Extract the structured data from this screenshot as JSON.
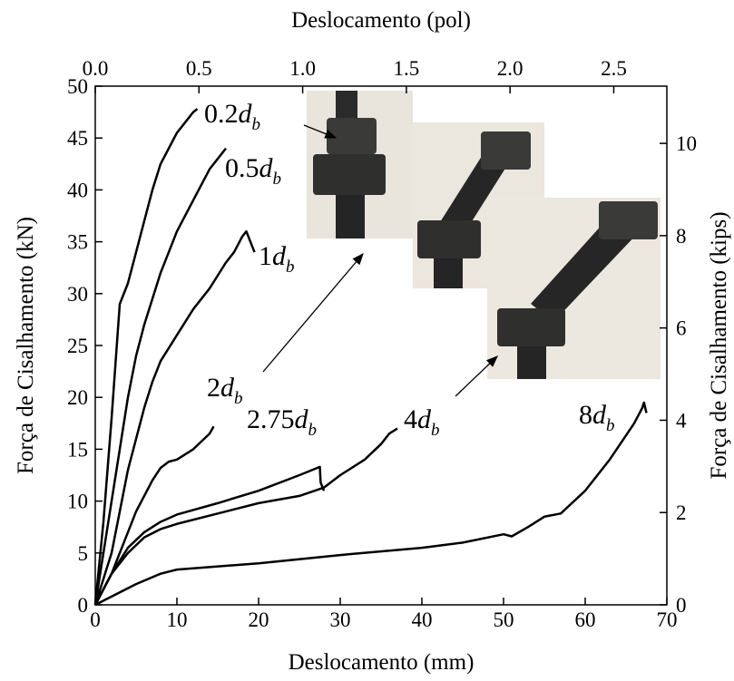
{
  "chart_data": {
    "type": "line",
    "xlabel": "Deslocamento (mm)",
    "ylabel": "Força de Cisalhamento (kN)",
    "x2label": "Deslocamento (pol)",
    "y2label": "Força de Cisalhamento (kips)",
    "xlim": [
      0,
      70
    ],
    "xticks": [
      0,
      10,
      20,
      30,
      40,
      50,
      60,
      70
    ],
    "ylim": [
      0,
      50
    ],
    "yticks": [
      0,
      5,
      10,
      15,
      20,
      25,
      30,
      35,
      40,
      45,
      50
    ],
    "x2lim": [
      0,
      2.756
    ],
    "x2ticks": [
      {
        "value": 0,
        "label": "0.0"
      },
      {
        "value": 0.5,
        "label": "0.5"
      },
      {
        "value": 1,
        "label": "1.0"
      },
      {
        "value": 1.5,
        "label": "1.5"
      },
      {
        "value": 2,
        "label": "2.0"
      },
      {
        "value": 2.5,
        "label": "2.5"
      }
    ],
    "y2lim": [
      0,
      11.24
    ],
    "y2ticks": [
      0,
      2,
      4,
      6,
      8,
      10
    ],
    "series_label_symbol": "d",
    "series_label_subscript": "b",
    "series": [
      {
        "name": "0.2",
        "color": "#000000",
        "x": [
          0,
          1,
          2,
          3,
          4,
          5,
          6,
          7,
          8,
          9,
          10,
          11,
          12,
          12.5
        ],
        "values": [
          0,
          8,
          18,
          29,
          31,
          34,
          37,
          40,
          42.5,
          44,
          45.5,
          46.5,
          47.5,
          47.8
        ]
      },
      {
        "name": "0.5",
        "color": "#000000",
        "x": [
          0,
          1,
          2,
          3,
          4,
          5,
          6,
          7,
          8,
          9,
          10,
          11,
          12,
          13,
          14,
          15,
          16
        ],
        "values": [
          0,
          5,
          10,
          15,
          20,
          24,
          27,
          29.5,
          32,
          34,
          36,
          37.5,
          39,
          40.5,
          42,
          43,
          44
        ]
      },
      {
        "name": "1",
        "color": "#000000",
        "x": [
          0,
          2,
          3,
          4,
          5,
          6,
          7,
          8,
          10,
          12,
          14,
          16,
          17,
          18,
          18.5,
          19,
          19.5
        ],
        "values": [
          0,
          5,
          9,
          13,
          16,
          19,
          21.5,
          23.5,
          26,
          28.5,
          30.5,
          33,
          34,
          35.5,
          36,
          35,
          34
        ]
      },
      {
        "name": "2",
        "color": "#000000",
        "x": [
          0,
          2,
          3,
          4,
          5,
          6,
          7,
          8,
          9,
          10,
          12,
          14,
          14.5
        ],
        "values": [
          0,
          3,
          5,
          7,
          9,
          10.5,
          12,
          13.2,
          13.8,
          14,
          15,
          16.5,
          17.2
        ]
      },
      {
        "name": "2.75",
        "color": "#000000",
        "x": [
          0,
          2,
          4,
          6,
          8,
          10,
          15,
          20,
          25,
          27.5,
          27.6,
          28
        ],
        "values": [
          0,
          3,
          5.5,
          7,
          8,
          8.7,
          9.8,
          11,
          12.5,
          13.3,
          11.8,
          11
        ]
      },
      {
        "name": "4",
        "color": "#000000",
        "x": [
          0,
          2,
          4,
          6,
          8,
          10,
          15,
          20,
          25,
          28,
          30,
          33,
          35,
          36,
          37
        ],
        "values": [
          0,
          3,
          5,
          6.5,
          7.3,
          7.8,
          8.8,
          9.8,
          10.5,
          11.3,
          12.5,
          14,
          15.5,
          16.5,
          17
        ]
      },
      {
        "name": "8",
        "color": "#000000",
        "x": [
          0,
          5,
          8,
          10,
          20,
          30,
          40,
          45,
          50,
          51,
          53,
          55,
          57,
          60,
          63,
          66,
          67,
          67.2,
          67.5
        ],
        "values": [
          0,
          2,
          3,
          3.4,
          4,
          4.8,
          5.5,
          6,
          6.8,
          6.6,
          7.5,
          8.5,
          8.8,
          11,
          14,
          17.5,
          19,
          19.5,
          18.5
        ]
      }
    ]
  }
}
